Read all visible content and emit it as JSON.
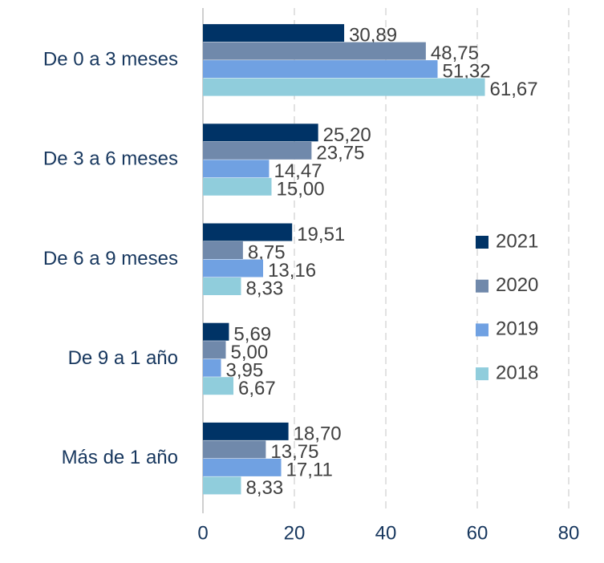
{
  "chart_data": {
    "type": "hbar",
    "categories": [
      "De 0 a 3 meses",
      "De 3 a 6 meses",
      "De 6 a 9 meses",
      "De 9 a 1 año",
      "Más de 1 año"
    ],
    "series": [
      {
        "name": "2021",
        "color": "#003366",
        "values": [
          30.89,
          25.2,
          19.51,
          5.69,
          18.7
        ],
        "value_labels": [
          "30,89",
          "25,20",
          "19,51",
          "5,69",
          "18,70"
        ]
      },
      {
        "name": "2020",
        "color": "#7089ab",
        "values": [
          48.75,
          23.75,
          8.75,
          5.0,
          13.75
        ],
        "value_labels": [
          "48,75",
          "23,75",
          "8,75",
          "5,00",
          "13,75"
        ]
      },
      {
        "name": "2019",
        "color": "#70a1e2",
        "values": [
          51.32,
          14.47,
          13.16,
          3.95,
          17.11
        ],
        "value_labels": [
          "51,32",
          "14,47",
          "13,16",
          "3,95",
          "17,11"
        ]
      },
      {
        "name": "2018",
        "color": "#90cddc",
        "values": [
          61.67,
          15.0,
          8.33,
          6.67,
          8.33
        ],
        "value_labels": [
          "61,67",
          "15,00",
          "8,33",
          "6,67",
          "8,33"
        ]
      }
    ],
    "xlim": [
      0,
      80
    ],
    "xticks": [
      0,
      20,
      40,
      60,
      80
    ],
    "grid": true,
    "legend": "right"
  }
}
